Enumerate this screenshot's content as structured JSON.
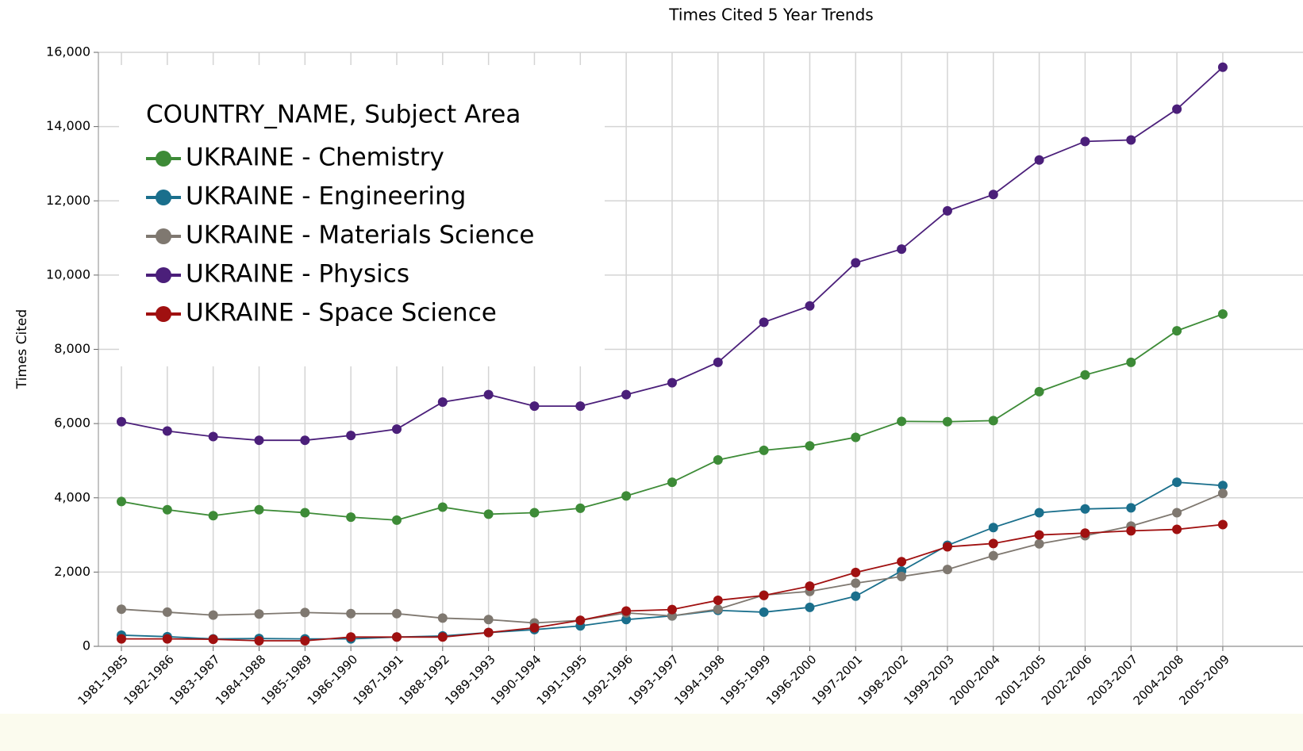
{
  "chart_data": {
    "type": "line",
    "title": "Times Cited 5 Year Trends",
    "y_label": "Times Cited",
    "legend_title": "COUNTRY_NAME, Subject Area",
    "legend": "upper-left",
    "grid": true,
    "categories": [
      "1981-1985",
      "1982-1986",
      "1983-1987",
      "1984-1988",
      "1985-1989",
      "1986-1990",
      "1987-1991",
      "1988-1992",
      "1989-1993",
      "1990-1994",
      "1991-1995",
      "1992-1996",
      "1993-1997",
      "1994-1998",
      "1995-1999",
      "1996-2000",
      "1997-2001",
      "1998-2002",
      "1999-2003",
      "2000-2004",
      "2001-2005",
      "2002-2006",
      "2003-2007",
      "2004-2008",
      "2005-2009"
    ],
    "ylim": [
      0,
      16000
    ],
    "yticks": [
      0,
      {
        "value": 2000,
        "label": "2,000"
      },
      {
        "value": 4000,
        "label": "4,000"
      },
      {
        "value": 6000,
        "label": "6,000"
      },
      {
        "value": 8000,
        "label": "8,000"
      },
      {
        "value": 10000,
        "label": "10,000"
      },
      {
        "value": 12000,
        "label": "12,000"
      },
      {
        "value": 14000,
        "label": "14,000"
      },
      {
        "value": 16000,
        "label": "16,000"
      }
    ],
    "series": [
      {
        "name": "UKRAINE - Chemistry",
        "color": "#3d8b37",
        "values": [
          3900,
          3680,
          3520,
          3680,
          3600,
          3480,
          3400,
          3750,
          3560,
          3600,
          3720,
          4050,
          4420,
          5020,
          5280,
          5400,
          5630,
          6060,
          6050,
          6080,
          6860,
          7310,
          7650,
          8500,
          8950
        ]
      },
      {
        "name": "UKRAINE - Engineering",
        "color": "#1a6f8c",
        "values": [
          300,
          260,
          200,
          210,
          200,
          200,
          250,
          280,
          370,
          450,
          550,
          720,
          820,
          970,
          920,
          1050,
          1350,
          2030,
          2720,
          3200,
          3600,
          3700,
          3730,
          4420,
          4330
        ]
      },
      {
        "name": "UKRAINE - Materials Science",
        "color": "#7f7870",
        "values": [
          1000,
          920,
          840,
          870,
          910,
          880,
          880,
          760,
          720,
          630,
          700,
          900,
          820,
          1000,
          1380,
          1480,
          1700,
          1880,
          2070,
          2440,
          2760,
          2980,
          3240,
          3600,
          4120
        ]
      },
      {
        "name": "UKRAINE - Physics",
        "color": "#4b1f7a",
        "values": [
          6050,
          5800,
          5650,
          5550,
          5550,
          5680,
          5850,
          6580,
          6780,
          6470,
          6470,
          6780,
          7100,
          7650,
          8730,
          9170,
          10330,
          10700,
          11730,
          12170,
          13100,
          13600,
          13640,
          14470,
          15600
        ]
      },
      {
        "name": "UKRAINE - Space Science",
        "color": "#a01010",
        "values": [
          200,
          200,
          190,
          150,
          150,
          250,
          250,
          250,
          370,
          500,
          700,
          950,
          990,
          1240,
          1370,
          1620,
          1990,
          2280,
          2680,
          2770,
          3000,
          3050,
          3110,
          3150,
          3280
        ]
      }
    ]
  }
}
